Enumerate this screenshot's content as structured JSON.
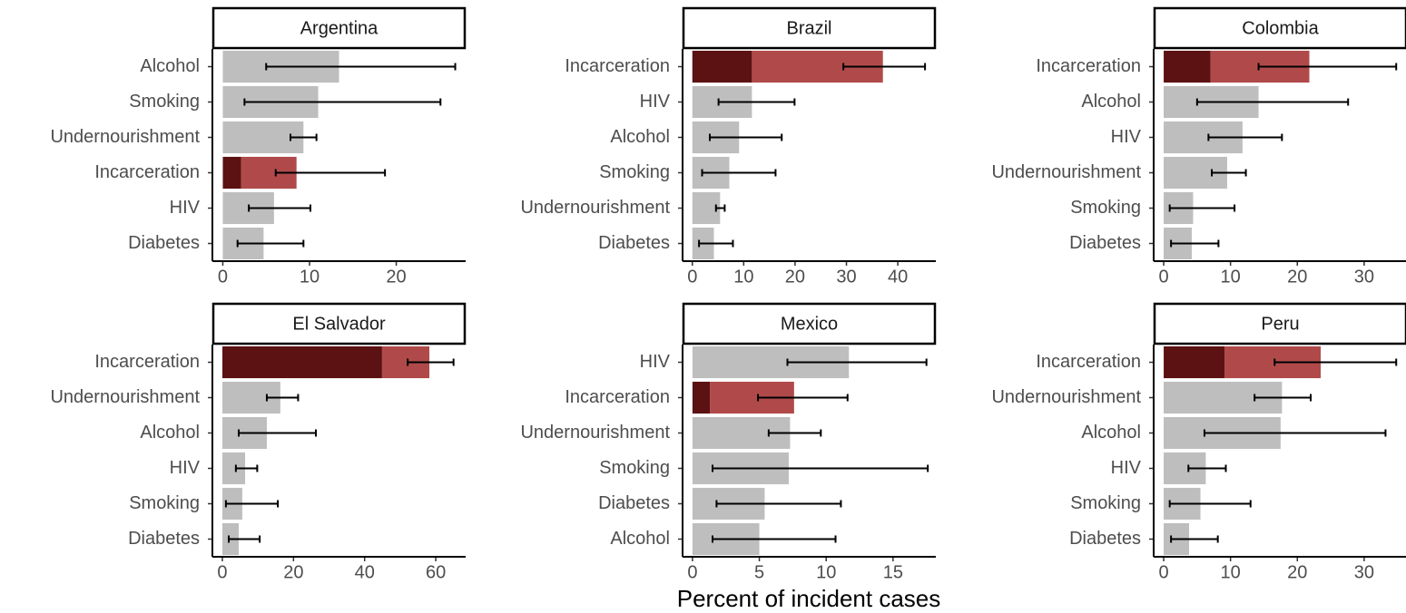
{
  "xlabel": "Percent of incident cases",
  "chart_data": [
    {
      "type": "bar",
      "orientation": "horizontal",
      "title": "Argentina",
      "categories": [
        "Alcohol",
        "Smoking",
        "Undernourishment",
        "Incarceration",
        "HIV",
        "Diabetes"
      ],
      "series": [
        {
          "color": "#5c1212",
          "values": [
            null,
            null,
            null,
            2.1,
            null,
            null
          ]
        },
        {
          "colors": [
            "#bebebe",
            "#bebebe",
            "#bebebe",
            "#b04a4a",
            "#bebebe",
            "#bebebe"
          ],
          "values": [
            13.4,
            11.0,
            9.3,
            6.4,
            5.9,
            4.7
          ]
        }
      ],
      "error_low": [
        5.0,
        2.5,
        7.8,
        6.1,
        3.0,
        1.7
      ],
      "error_high": [
        26.8,
        25.1,
        10.8,
        18.7,
        10.1,
        9.3
      ],
      "xlim": [
        -1.2,
        28
      ],
      "xticks": [
        0,
        10,
        20
      ]
    },
    {
      "type": "bar",
      "orientation": "horizontal",
      "title": "Brazil",
      "categories": [
        "Incarceration",
        "HIV",
        "Alcohol",
        "Smoking",
        "Undernourishment",
        "Diabetes"
      ],
      "series": [
        {
          "color": "#5c1212",
          "values": [
            11.6,
            null,
            null,
            null,
            null,
            null
          ]
        },
        {
          "colors": [
            "#b04a4a",
            "#bebebe",
            "#bebebe",
            "#bebebe",
            "#bebebe",
            "#bebebe"
          ],
          "values": [
            25.5,
            11.6,
            9.1,
            7.2,
            5.4,
            4.2
          ]
        }
      ],
      "error_low": [
        29.4,
        5.1,
        3.4,
        1.9,
        4.6,
        1.3
      ],
      "error_high": [
        45.3,
        19.9,
        17.4,
        16.2,
        6.3,
        7.9
      ],
      "xlim": [
        -1.9,
        47.4
      ],
      "xticks": [
        0,
        10,
        20,
        30,
        40
      ]
    },
    {
      "type": "bar",
      "orientation": "horizontal",
      "title": "Colombia",
      "categories": [
        "Incarceration",
        "Alcohol",
        "HIV",
        "Undernourishment",
        "Smoking",
        "Diabetes"
      ],
      "series": [
        {
          "color": "#5c1212",
          "values": [
            7.0,
            null,
            null,
            null,
            null,
            null
          ]
        },
        {
          "colors": [
            "#b04a4a",
            "#bebebe",
            "#bebebe",
            "#bebebe",
            "#bebebe",
            "#bebebe"
          ],
          "values": [
            14.8,
            14.2,
            11.8,
            9.5,
            4.4,
            4.2
          ]
        }
      ],
      "error_low": [
        14.2,
        5.0,
        6.7,
        7.2,
        0.9,
        1.1
      ],
      "error_high": [
        34.8,
        27.6,
        17.7,
        12.3,
        10.6,
        8.2
      ],
      "xlim": [
        -1.5,
        36.4
      ],
      "xticks": [
        0,
        10,
        20,
        30
      ]
    },
    {
      "type": "bar",
      "orientation": "horizontal",
      "title": "El Salvador",
      "categories": [
        "Incarceration",
        "Undernourishment",
        "Alcohol",
        "HIV",
        "Smoking",
        "Diabetes"
      ],
      "series": [
        {
          "color": "#5c1212",
          "values": [
            44.9,
            null,
            null,
            null,
            null,
            null
          ]
        },
        {
          "colors": [
            "#b04a4a",
            "#bebebe",
            "#bebebe",
            "#bebebe",
            "#bebebe",
            "#bebebe"
          ],
          "values": [
            13.3,
            16.3,
            12.5,
            6.4,
            5.6,
            4.6
          ]
        }
      ],
      "error_low": [
        52.1,
        12.5,
        4.6,
        3.8,
        1.0,
        1.8
      ],
      "error_high": [
        65.0,
        21.3,
        26.3,
        9.8,
        15.6,
        10.5
      ],
      "xlim": [
        -2.8,
        68.4
      ],
      "xticks": [
        0,
        20,
        40,
        60
      ]
    },
    {
      "type": "bar",
      "orientation": "horizontal",
      "title": "Mexico",
      "categories": [
        "HIV",
        "Incarceration",
        "Undernourishment",
        "Smoking",
        "Diabetes",
        "Alcohol"
      ],
      "series": [
        {
          "color": "#5c1212",
          "values": [
            null,
            1.3,
            null,
            null,
            null,
            null
          ]
        },
        {
          "colors": [
            "#bebebe",
            "#b04a4a",
            "#bebebe",
            "#bebebe",
            "#bebebe",
            "#bebebe"
          ],
          "values": [
            11.7,
            6.3,
            7.3,
            7.2,
            5.4,
            5.0
          ]
        }
      ],
      "error_low": [
        7.1,
        4.9,
        5.7,
        1.5,
        1.8,
        1.5
      ],
      "error_high": [
        17.5,
        11.6,
        9.6,
        17.6,
        11.1,
        10.7
      ],
      "xlim": [
        -0.74,
        18.2
      ],
      "xticks": [
        0,
        5,
        10,
        15
      ]
    },
    {
      "type": "bar",
      "orientation": "horizontal",
      "title": "Peru",
      "categories": [
        "Incarceration",
        "Undernourishment",
        "Alcohol",
        "HIV",
        "Smoking",
        "Diabetes"
      ],
      "series": [
        {
          "color": "#5c1212",
          "values": [
            9.1,
            null,
            null,
            null,
            null,
            null
          ]
        },
        {
          "colors": [
            "#b04a4a",
            "#bebebe",
            "#bebebe",
            "#bebebe",
            "#bebebe",
            "#bebebe"
          ],
          "values": [
            14.4,
            17.7,
            17.5,
            6.3,
            5.5,
            3.8
          ]
        }
      ],
      "error_low": [
        16.6,
        13.6,
        6.1,
        3.7,
        0.9,
        1.1
      ],
      "error_high": [
        34.8,
        22.0,
        33.2,
        9.3,
        13.0,
        8.1
      ],
      "xlim": [
        -1.5,
        36.4
      ],
      "xticks": [
        0,
        10,
        20,
        30
      ]
    }
  ]
}
